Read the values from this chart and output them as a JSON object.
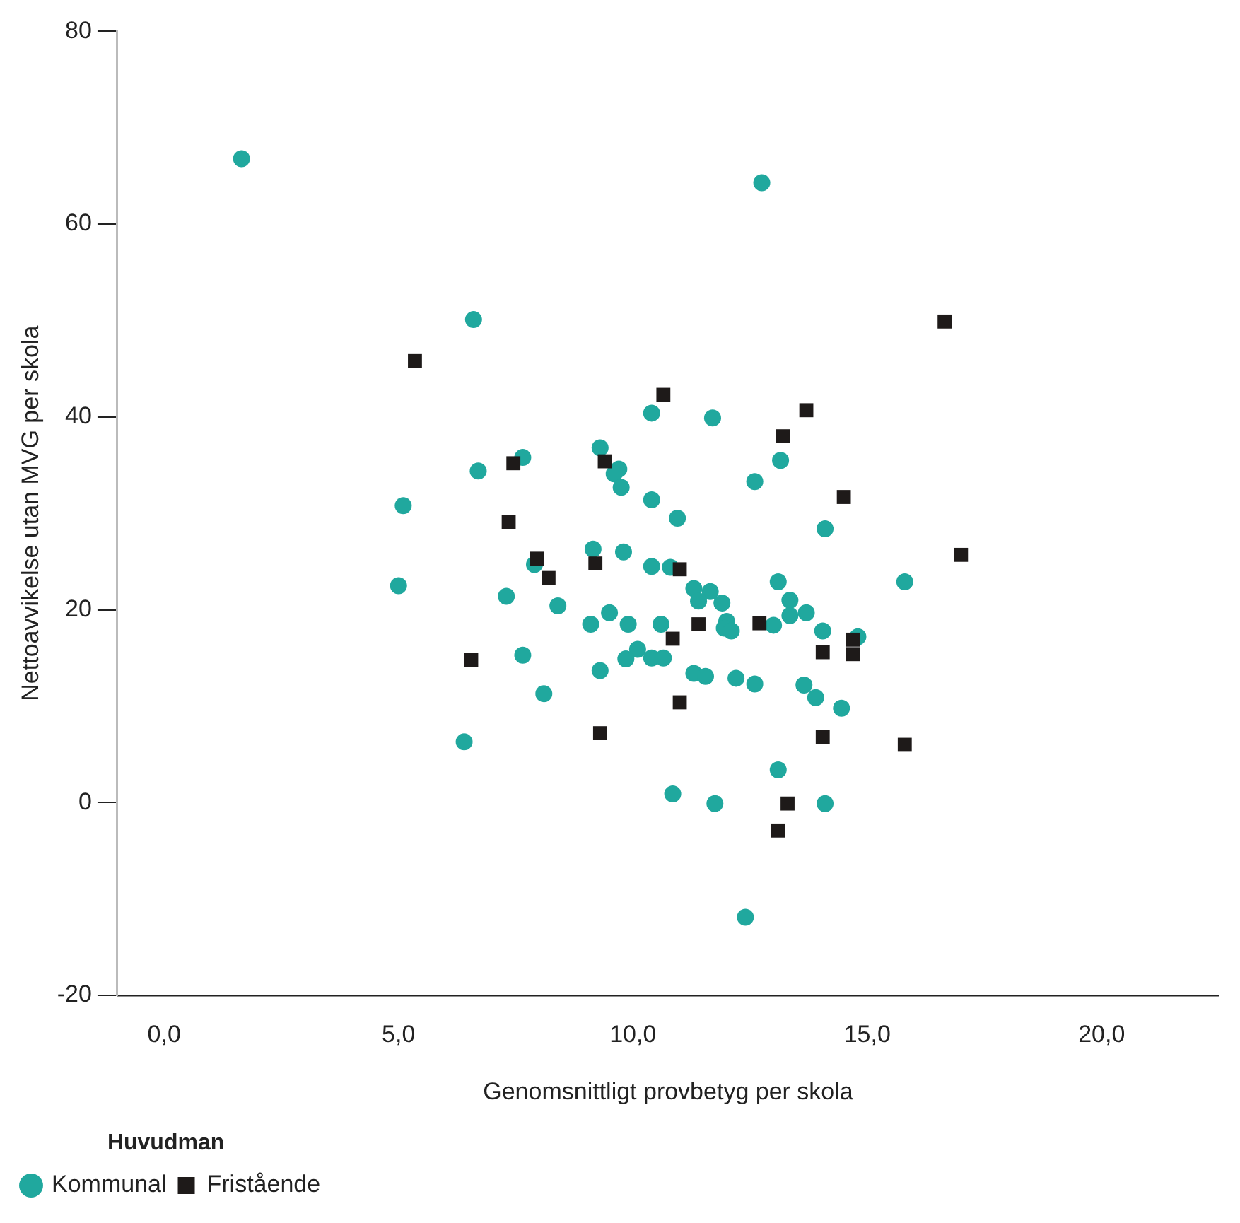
{
  "chart_data": {
    "type": "scatter",
    "xlabel": "Genomsnittligt provbetyg per skola",
    "ylabel": "Nettoavvikelse utan MVG per skola",
    "legend_title": "Huvudman",
    "legend": "bottom left",
    "grid": false,
    "xlim": [
      -1,
      22.5
    ],
    "ylim": [
      -20,
      80
    ],
    "xticks": [
      {
        "value": 0,
        "label": "0,0"
      },
      {
        "value": 5,
        "label": "5,0"
      },
      {
        "value": 10,
        "label": "10,0"
      },
      {
        "value": 15,
        "label": "15,0"
      },
      {
        "value": 20,
        "label": "20,0"
      }
    ],
    "yticks": [
      -20,
      0,
      20,
      40,
      60,
      80
    ],
    "series": [
      {
        "name": "Kommunal",
        "color": "#20a89e",
        "marker": "circle",
        "x": [
          1.65,
          12.75,
          6.6,
          5.1,
          5.0,
          6.7,
          7.65,
          6.4,
          7.3,
          7.65,
          7.9,
          8.1,
          8.4,
          9.15,
          9.3,
          9.7,
          9.6,
          9.75,
          10.4,
          10.95,
          10.4,
          11.7,
          9.8,
          10.4,
          10.8,
          13.1,
          13.35,
          13.35,
          11.3,
          11.65,
          11.4,
          11.9,
          9.1,
          9.5,
          9.9,
          10.6,
          12.0,
          11.95,
          12.1,
          13.0,
          10.1,
          9.85,
          10.4,
          10.65,
          9.3,
          11.3,
          11.55,
          12.2,
          12.6,
          13.1,
          10.85,
          11.75,
          12.4,
          14.1,
          13.7,
          14.05,
          14.8,
          15.8,
          13.65,
          13.9,
          14.45,
          14.1,
          13.15,
          12.6
        ],
        "values": [
          66.8,
          64.3,
          50.1,
          30.8,
          22.5,
          34.4,
          35.8,
          6.3,
          21.4,
          15.3,
          24.7,
          11.3,
          20.4,
          26.3,
          36.8,
          34.6,
          34.1,
          32.7,
          31.4,
          29.5,
          40.4,
          39.9,
          26.0,
          24.5,
          24.4,
          22.9,
          21.0,
          19.4,
          22.2,
          21.9,
          20.9,
          20.7,
          18.5,
          19.7,
          18.5,
          18.5,
          18.8,
          18.1,
          17.8,
          18.4,
          15.9,
          14.9,
          15.0,
          15.0,
          13.7,
          13.4,
          13.1,
          12.9,
          12.3,
          3.4,
          0.9,
          -0.1,
          -11.9,
          28.4,
          19.7,
          17.8,
          17.2,
          22.9,
          12.2,
          10.9,
          9.8,
          -0.1,
          35.5,
          33.3
        ]
      },
      {
        "name": "Fristående",
        "color": "#1e1a19",
        "marker": "square",
        "x": [
          5.35,
          10.65,
          7.45,
          9.4,
          7.35,
          7.95,
          8.2,
          9.2,
          11.0,
          11.4,
          10.85,
          12.7,
          6.55,
          11.0,
          9.3,
          13.3,
          13.1,
          17.0,
          14.7,
          14.7,
          14.05,
          14.05,
          15.8,
          13.7,
          13.2,
          14.5,
          16.65
        ],
        "values": [
          45.8,
          42.3,
          35.2,
          35.4,
          29.1,
          25.3,
          23.3,
          24.8,
          24.2,
          18.5,
          17.0,
          18.6,
          14.8,
          10.4,
          7.2,
          -0.1,
          -2.9,
          25.7,
          16.9,
          15.4,
          15.6,
          6.8,
          6.0,
          40.7,
          38.0,
          31.7,
          49.9
        ]
      }
    ]
  }
}
